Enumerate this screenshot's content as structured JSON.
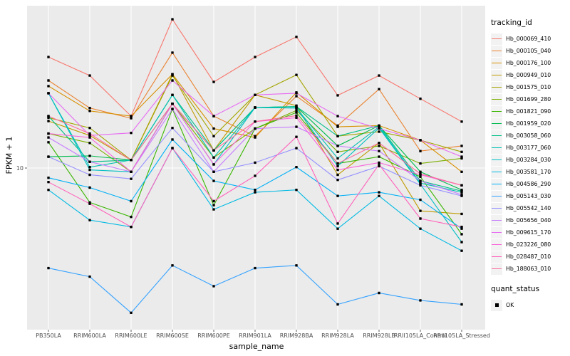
{
  "figure": {
    "background": "#FFFFFF",
    "panel_background": "#EBEBEB",
    "grid_color": "#FFFFFF",
    "tick_text_color": "#4D4D4D",
    "tick_mark_color": "#333333",
    "marker_color": "#000000"
  },
  "chart_data": {
    "type": "line",
    "title": "",
    "xlabel": "sample_name",
    "ylabel": "FPKM + 1",
    "y_scale": "log10",
    "ylim": [
      2,
      55
    ],
    "y_ticks": [
      10
    ],
    "y_tick_labels": [
      "10"
    ],
    "grid": "on",
    "marker": {
      "shape": "square",
      "color": "#000000",
      "size": 3.4
    },
    "legend": {
      "title": "tracking_id",
      "position": "right"
    },
    "legend2": {
      "title": "quant_status",
      "items": [
        {
          "label": "OK",
          "marker": "square",
          "color": "#000000"
        }
      ]
    },
    "categories": [
      "PB350LA",
      "RRIM600LA",
      "RRIM600LE",
      "RRIM600SE",
      "RRIM600PE",
      "RRIM901LA",
      "RRIM928BA",
      "RRIM928LA",
      "RRIM928LB",
      "RRII105LA_Control",
      "RRII105LA_Stressed"
    ],
    "series": [
      {
        "name": "Hb_000069_410",
        "color": "#F8766D",
        "values": [
          33.1,
          27.1,
          17.5,
          49.7,
          25.3,
          33.1,
          41.1,
          21.9,
          27.1,
          21.1,
          16.5
        ]
      },
      {
        "name": "Hb_000105_040",
        "color": "#EA8331",
        "values": [
          25.7,
          19.1,
          17.1,
          34.7,
          17.5,
          14.1,
          21.7,
          15.8,
          23.4,
          12.0,
          12.7
        ]
      },
      {
        "name": "Hb_000176_100",
        "color": "#D89000",
        "values": [
          24.2,
          18.5,
          17.5,
          27.5,
          15.3,
          13.9,
          22.6,
          15.6,
          15.8,
          13.5,
          9.6
        ]
      },
      {
        "name": "Hb_000949_010",
        "color": "#C09B00",
        "values": [
          16.6,
          14.2,
          10.9,
          27.5,
          12.1,
          22.0,
          19.6,
          9.3,
          13.1,
          6.3,
          6.1
        ]
      },
      {
        "name": "Hb_001575_010",
        "color": "#A3A500",
        "values": [
          17.2,
          15.4,
          10.9,
          27.1,
          14.1,
          22.0,
          27.3,
          14.1,
          14.8,
          13.5,
          11.9
        ]
      },
      {
        "name": "Hb_001699_280",
        "color": "#7CAE00",
        "values": [
          14.5,
          13.1,
          9.6,
          20.0,
          11.2,
          15.3,
          18.6,
          11.9,
          12.7,
          10.5,
          11.1
        ]
      },
      {
        "name": "Hb_001821_090",
        "color": "#39B600",
        "values": [
          13.2,
          6.9,
          5.9,
          18.9,
          6.7,
          15.3,
          18.2,
          10.5,
          11.3,
          9.1,
          4.9
        ]
      },
      {
        "name": "Hb_001959_020",
        "color": "#00BB4E",
        "values": [
          11.3,
          11.4,
          10.9,
          20.0,
          12.1,
          19.2,
          19.4,
          12.7,
          15.8,
          9.6,
          7.9
        ]
      },
      {
        "name": "Hb_003058_060",
        "color": "#00C087",
        "values": [
          17.5,
          10.7,
          10.9,
          22.0,
          12.1,
          19.2,
          19.4,
          14.1,
          15.8,
          8.7,
          7.8
        ]
      },
      {
        "name": "Hb_003177_060",
        "color": "#00C0B2",
        "values": [
          22.4,
          10.1,
          10.9,
          22.0,
          11.2,
          19.2,
          19.1,
          11.1,
          15.6,
          8.5,
          7.7
        ]
      },
      {
        "name": "Hb_003284_030",
        "color": "#00BFC4",
        "values": [
          22.4,
          9.8,
          9.6,
          20.0,
          10.4,
          19.2,
          19.1,
          10.2,
          15.4,
          8.4,
          4.5
        ]
      },
      {
        "name": "Hb_003581_170",
        "color": "#00BAE3",
        "values": [
          7.9,
          5.7,
          5.3,
          12.4,
          6.4,
          7.7,
          7.9,
          5.2,
          7.4,
          5.2,
          4.1
        ]
      },
      {
        "name": "Hb_004586_290",
        "color": "#00B0F6",
        "values": [
          9.0,
          8.1,
          7.0,
          13.6,
          8.7,
          7.9,
          10.1,
          7.4,
          7.7,
          7.1,
          5.2
        ]
      },
      {
        "name": "Hb_005143_030",
        "color": "#35A2FF",
        "values": [
          3.4,
          3.1,
          2.1,
          3.5,
          2.8,
          3.4,
          3.5,
          2.3,
          2.6,
          2.4,
          2.3
        ]
      },
      {
        "name": "Hb_005542_140",
        "color": "#9590FF",
        "values": [
          11.3,
          9.3,
          8.9,
          15.4,
          9.6,
          10.6,
          12.4,
          8.8,
          10.2,
          8.3,
          7.4
        ]
      },
      {
        "name": "Hb_005656_040",
        "color": "#C77CFF",
        "values": [
          13.9,
          10.7,
          9.6,
          18.9,
          9.6,
          15.3,
          15.6,
          12.7,
          12.0,
          8.7,
          7.5
        ]
      },
      {
        "name": "Hb_009615_170",
        "color": "#E76BF3",
        "values": [
          22.4,
          14.2,
          14.6,
          25.7,
          17.5,
          22.0,
          22.4,
          17.5,
          15.3,
          13.5,
          11.3
        ]
      },
      {
        "name": "Hb_023226_080",
        "color": "#FA62DB",
        "values": [
          14.5,
          13.9,
          9.6,
          20.0,
          10.4,
          16.5,
          17.2,
          9.8,
          10.6,
          9.3,
          8.3
        ]
      },
      {
        "name": "Hb_028487_010",
        "color": "#FF62BC",
        "values": [
          8.6,
          6.8,
          5.3,
          12.4,
          7.0,
          9.2,
          14.0,
          5.5,
          10.4,
          5.8,
          5.3
        ]
      },
      {
        "name": "Hb_188063_010",
        "color": "#FF6A98",
        "values": [
          17.5,
          14.5,
          10.9,
          20.0,
          12.1,
          16.5,
          17.6,
          10.5,
          13.1,
          9.4,
          8.3
        ]
      }
    ]
  }
}
